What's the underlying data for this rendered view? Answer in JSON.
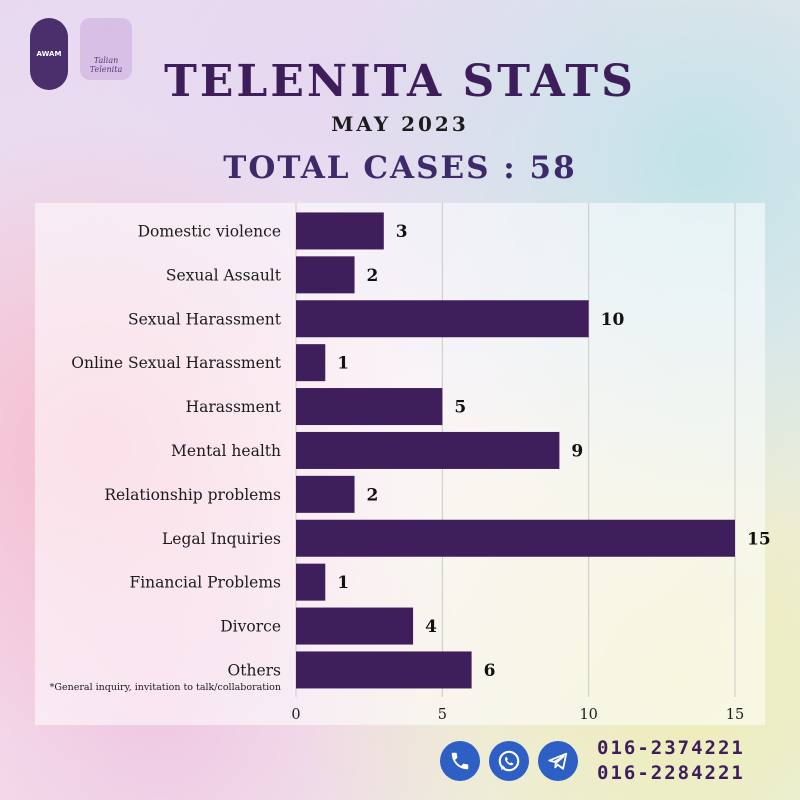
{
  "branding": {
    "logo_left_text": "AWAM",
    "logo_right_text": "Talian Telenita"
  },
  "header": {
    "title": "TELENITA STATS",
    "subtitle": "MAY 2023",
    "total": "TOTAL CASES : 58"
  },
  "colors": {
    "bar": "#3f1e5c",
    "grid": "#c9c9c9",
    "title": "#3e1e5a",
    "icon": "#2d5fc4"
  },
  "chart_data": {
    "type": "bar",
    "orientation": "horizontal",
    "categories": [
      "Domestic violence",
      "Sexual Assault",
      "Sexual Harassment",
      "Online Sexual Harassment",
      "Harassment",
      "Mental health",
      "Relationship problems",
      "Legal Inquiries",
      "Financial Problems",
      "Divorce",
      "Others"
    ],
    "values": [
      3,
      2,
      10,
      1,
      5,
      9,
      2,
      15,
      1,
      4,
      6
    ],
    "xlim": [
      0,
      15
    ],
    "xticks": [
      0,
      5,
      10,
      15
    ],
    "grid": true,
    "footnote": "*General inquiry, invitation to talk/collaboration"
  },
  "contact": {
    "icons": [
      "phone-icon",
      "whatsapp-icon",
      "telegram-icon"
    ],
    "phone_1": "016-2374221",
    "phone_2": "016-2284221"
  }
}
